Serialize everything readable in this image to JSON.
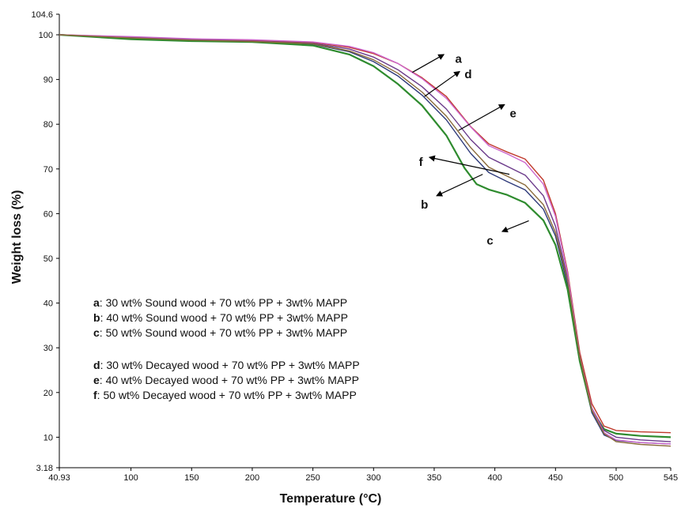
{
  "chart_data": {
    "type": "line",
    "title": "",
    "xlabel": "Temperature (°C)",
    "ylabel": "Weight loss (%)",
    "xlim": [
      40.93,
      545
    ],
    "ylim": [
      3.18,
      104.6
    ],
    "x_ticks": [
      40.93,
      100,
      150,
      200,
      250,
      300,
      350,
      400,
      450,
      500,
      545
    ],
    "x_tick_labels": [
      "40.93",
      "100",
      "150",
      "200",
      "250",
      "300",
      "350",
      "400",
      "450",
      "500",
      "545"
    ],
    "y_ticks": [
      3.18,
      10,
      20,
      30,
      40,
      50,
      60,
      70,
      80,
      90,
      100,
      104.6
    ],
    "y_tick_labels": [
      "3.18",
      "10",
      "20",
      "30",
      "40",
      "50",
      "60",
      "70",
      "80",
      "90",
      "100",
      "104.6"
    ],
    "grid": false,
    "series": [
      {
        "name": "a",
        "color": "#c0392b",
        "x": [
          40.93,
          100,
          150,
          200,
          250,
          280,
          300,
          320,
          340,
          360,
          380,
          395,
          410,
          425,
          440,
          450,
          460,
          470,
          480,
          490,
          500,
          520,
          545
        ],
        "y": [
          100,
          99.5,
          99,
          98.8,
          98.3,
          97.2,
          95.8,
          93.6,
          90.4,
          86.2,
          79.5,
          75.6,
          73.8,
          72.2,
          67.5,
          60,
          47,
          29,
          17.5,
          12.5,
          11.5,
          11.2,
          11
        ]
      },
      {
        "name": "b",
        "color": "#2e3a7a",
        "x": [
          40.93,
          100,
          150,
          200,
          250,
          280,
          300,
          320,
          340,
          360,
          380,
          395,
          410,
          425,
          440,
          450,
          460,
          470,
          480,
          490,
          500,
          520,
          545
        ],
        "y": [
          100,
          99.2,
          98.7,
          98.5,
          97.9,
          96.2,
          94,
          90.8,
          86.5,
          81,
          73.5,
          69.2,
          67.2,
          65.3,
          61,
          55,
          44,
          27,
          15.5,
          10.5,
          9.3,
          8.8,
          8.5
        ]
      },
      {
        "name": "c",
        "color": "#2e8b2e",
        "x": [
          40.93,
          100,
          150,
          200,
          250,
          280,
          300,
          320,
          340,
          360,
          375,
          385,
          395,
          410,
          425,
          440,
          450,
          460,
          470,
          480,
          490,
          500,
          520,
          545
        ],
        "y": [
          100,
          99,
          98.6,
          98.4,
          97.6,
          95.6,
          93,
          89,
          84.2,
          77.5,
          70.2,
          66.6,
          65.4,
          64.2,
          62.4,
          58.5,
          53,
          43,
          27,
          16,
          11.8,
          10.8,
          10.3,
          10
        ]
      },
      {
        "name": "d",
        "color": "#6b3a8a",
        "x": [
          40.93,
          100,
          150,
          200,
          250,
          280,
          300,
          320,
          340,
          360,
          380,
          395,
          410,
          425,
          440,
          450,
          460,
          470,
          480,
          490,
          500,
          520,
          545
        ],
        "y": [
          100,
          99.4,
          98.9,
          98.6,
          98.1,
          96.8,
          95,
          92.2,
          88.4,
          83.4,
          76.6,
          72.6,
          70.6,
          68.6,
          64,
          57.2,
          45.5,
          28,
          16.5,
          11.5,
          10,
          9.4,
          9
        ]
      },
      {
        "name": "e",
        "color": "#cc66cc",
        "x": [
          40.93,
          100,
          150,
          200,
          250,
          280,
          300,
          320,
          340,
          360,
          380,
          395,
          410,
          425,
          440,
          450,
          460,
          470,
          480,
          490,
          500,
          520,
          545
        ],
        "y": [
          100,
          99.6,
          99.1,
          98.9,
          98.4,
          97.4,
          96,
          93.6,
          90.2,
          85.8,
          79.4,
          75.2,
          73.4,
          71.4,
          66.6,
          59.4,
          46.5,
          28.2,
          16.4,
          11,
          9.4,
          8.8,
          8.5
        ]
      },
      {
        "name": "f",
        "color": "#8a6a3a",
        "x": [
          40.93,
          100,
          150,
          200,
          250,
          280,
          300,
          320,
          340,
          360,
          380,
          395,
          410,
          425,
          440,
          450,
          460,
          470,
          480,
          490,
          500,
          520,
          545
        ],
        "y": [
          100,
          99.3,
          98.8,
          98.5,
          98,
          96.4,
          94.4,
          91.4,
          87.2,
          81.8,
          74.8,
          70.4,
          68.4,
          66.4,
          62,
          55.8,
          45,
          28,
          16,
          10.8,
          9,
          8.4,
          8
        ]
      }
    ],
    "annotations": [
      {
        "text": "a",
        "label_x": 370,
        "label_y": 94.6,
        "arrow_from_x": 332,
        "arrow_from_y": 91.6,
        "arrow_to_x": 358,
        "arrow_to_y": 95.6
      },
      {
        "text": "d",
        "label_x": 378,
        "label_y": 91.2,
        "arrow_from_x": 342,
        "arrow_from_y": 86.2,
        "arrow_to_x": 371,
        "arrow_to_y": 91.8
      },
      {
        "text": "e",
        "label_x": 415,
        "label_y": 82.4,
        "arrow_from_x": 370,
        "arrow_from_y": 78.6,
        "arrow_to_x": 408,
        "arrow_to_y": 84.4
      },
      {
        "text": "f",
        "label_x": 339,
        "label_y": 71.6,
        "arrow_from_x": 412,
        "arrow_from_y": 68.8,
        "arrow_to_x": 346,
        "arrow_to_y": 72.6
      },
      {
        "text": "b",
        "label_x": 342,
        "label_y": 62,
        "arrow_from_x": 390,
        "arrow_from_y": 68.8,
        "arrow_to_x": 352,
        "arrow_to_y": 64
      },
      {
        "text": "c",
        "label_x": 396,
        "label_y": 54,
        "arrow_from_x": 428,
        "arrow_from_y": 58.4,
        "arrow_to_x": 406,
        "arrow_to_y": 56
      }
    ],
    "legend": {
      "placement": "lower-left",
      "groups": [
        [
          {
            "key": "a",
            "text": ": 30 wt% Sound wood + 70 wt% PP + 3wt% MAPP"
          },
          {
            "key": "b",
            "text": ": 40 wt% Sound wood + 70 wt% PP + 3wt% MAPP"
          },
          {
            "key": "c",
            "text": ": 50 wt% Sound wood + 70 wt% PP + 3wt% MAPP"
          }
        ],
        [
          {
            "key": "d",
            "text": ": 30 wt% Decayed wood + 70 wt% PP + 3wt% MAPP"
          },
          {
            "key": "e",
            "text": ": 40 wt% Decayed wood + 70 wt% PP + 3wt% MAPP"
          },
          {
            "key": "f",
            "text": ": 50 wt% Decayed wood + 70 wt% PP + 3wt% MAPP"
          }
        ]
      ]
    }
  }
}
